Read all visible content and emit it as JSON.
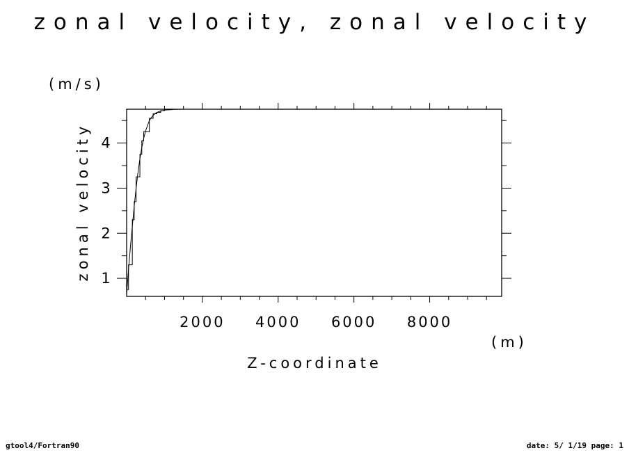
{
  "title": "zonal velocity, zonal velocity",
  "footer": {
    "left": "gtool4/Fortran90",
    "right": "date: 5/ 1/19 page: 1"
  },
  "chart_data": {
    "type": "line",
    "title": "zonal velocity, zonal velocity",
    "xlabel": "Z-coordinate",
    "xunit": "(m)",
    "ylabel": "zonal velocity",
    "yunit": "(m/s)",
    "xlim": [
      0,
      9900
    ],
    "ylim": [
      0.6,
      4.75
    ],
    "xticks": [
      2000,
      4000,
      6000,
      8000
    ],
    "yticks": [
      1,
      2,
      3,
      4
    ],
    "grid": false,
    "series": [
      {
        "style": "smooth",
        "x": [
          0,
          50,
          100,
          150,
          200,
          250,
          300,
          350,
          400,
          450,
          500,
          600,
          700,
          800,
          900,
          1000,
          1200,
          1400,
          1600,
          2000
        ],
        "y": [
          0.65,
          1.2,
          1.7,
          2.15,
          2.6,
          3.0,
          3.35,
          3.65,
          3.9,
          4.1,
          4.27,
          4.5,
          4.62,
          4.68,
          4.71,
          4.73,
          4.745,
          4.75,
          4.75,
          4.75
        ]
      },
      {
        "style": "step",
        "x": [
          0,
          50,
          100,
          150,
          200,
          250,
          300,
          350,
          400,
          450,
          500,
          600,
          700,
          800,
          900,
          1000,
          1200,
          1400,
          1600,
          2000
        ],
        "y": [
          0.75,
          1.3,
          1.3,
          2.3,
          2.7,
          3.25,
          3.25,
          3.75,
          4.05,
          4.25,
          4.25,
          4.55,
          4.65,
          4.68,
          4.72,
          4.74,
          4.75,
          4.75,
          4.75,
          4.75
        ]
      }
    ]
  }
}
